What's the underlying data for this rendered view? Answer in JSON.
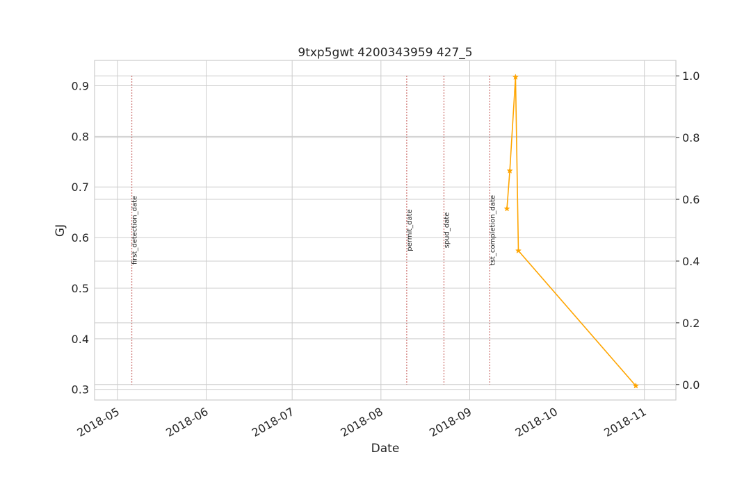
{
  "chart_data": {
    "type": "line",
    "title": "9txp5gwt 4200343959 427_5",
    "xlabel": "Date",
    "ylabel_left": "GJ",
    "ylabel_right": "",
    "left_ylim": [
      0.279,
      0.95
    ],
    "left_yticks": [
      0.3,
      0.4,
      0.5,
      0.6,
      0.7,
      0.8,
      0.9
    ],
    "right_ylim": [
      -0.05,
      1.05
    ],
    "right_yticks": [
      0.0,
      0.2,
      0.4,
      0.6,
      0.8,
      1.0
    ],
    "xlim": [
      "2018-04-23",
      "2018-11-12"
    ],
    "xticks": [
      "2018-05-01",
      "2018-06-01",
      "2018-07-01",
      "2018-08-01",
      "2018-09-01",
      "2018-10-01",
      "2018-11-01"
    ],
    "xtick_labels": [
      "2018-05",
      "2018-06",
      "2018-07",
      "2018-08",
      "2018-09",
      "2018-10",
      "2018-11"
    ],
    "grid": true,
    "series": [
      {
        "axis": "left",
        "color": "#ffa500",
        "marker": "star",
        "points": [
          {
            "x": "2018-09-14",
            "y": 0.657
          },
          {
            "x": "2018-09-15",
            "y": 0.732
          },
          {
            "x": "2018-09-17",
            "y": 0.917
          },
          {
            "x": "2018-09-18",
            "y": 0.574
          },
          {
            "x": "2018-10-29",
            "y": 0.307
          }
        ]
      }
    ],
    "events": [
      {
        "label": "first_detection_date",
        "x": "2018-05-06"
      },
      {
        "label": "permit_date",
        "x": "2018-08-10"
      },
      {
        "label": "spud_date",
        "x": "2018-08-23"
      },
      {
        "label": "tst_completion_date",
        "x": "2018-09-08"
      }
    ],
    "colors": {
      "series": "#ffa500",
      "event_line": "#c0504d",
      "ylabel_left": "#1f77b4",
      "grid": "#cccccc",
      "spine": "#cccccc"
    }
  }
}
